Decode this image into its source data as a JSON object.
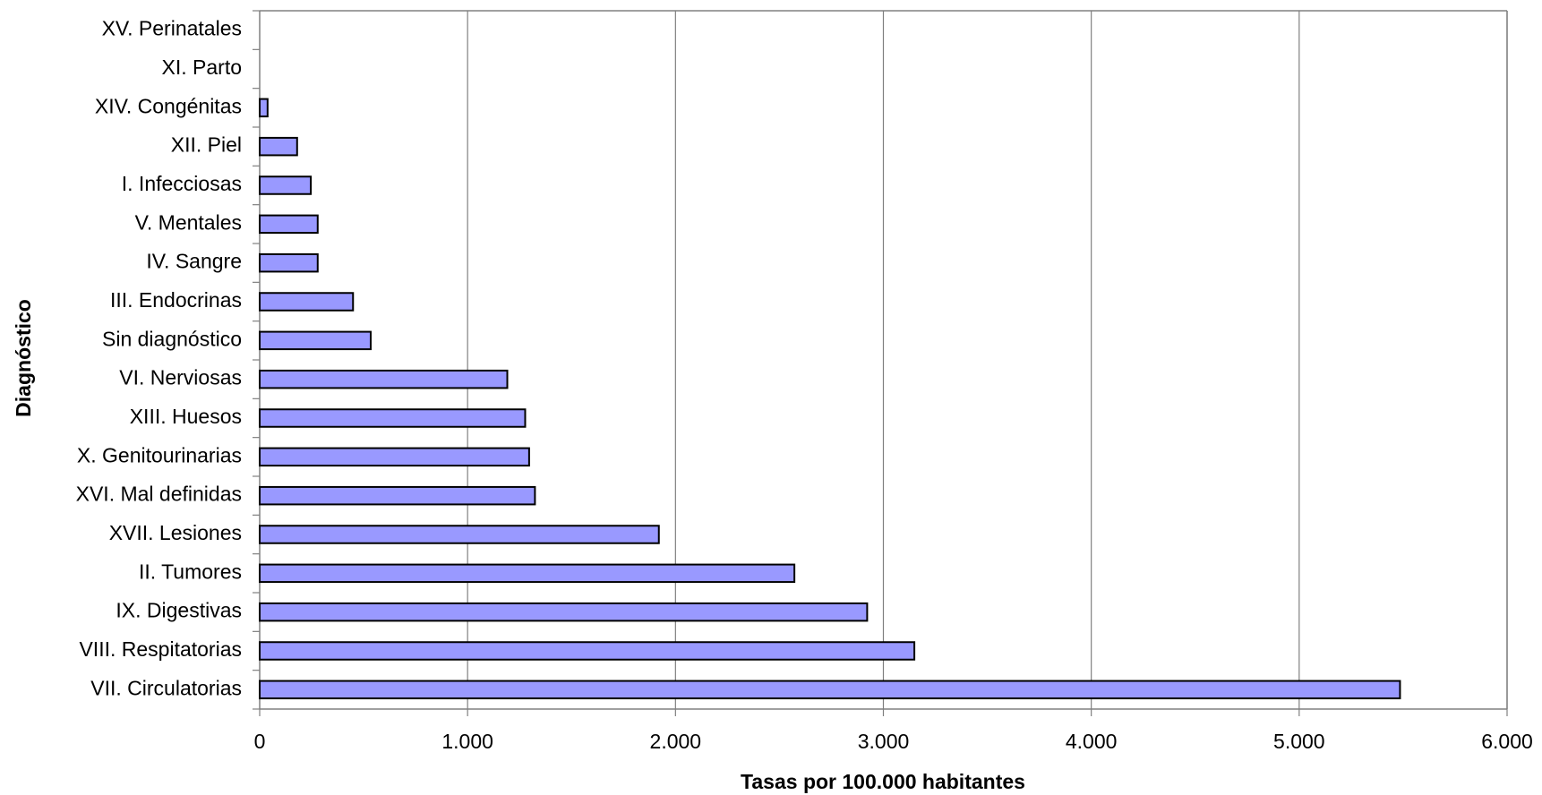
{
  "chart_data": {
    "type": "bar",
    "orientation": "horizontal",
    "x_label": "Tasas por 100.000 habitantes",
    "y_label": "Diagnóstico",
    "categories": [
      "XV. Perinatales",
      "XI. Parto",
      "XIV. Congénitas",
      "XII. Piel",
      "I. Infecciosas",
      "V. Mentales",
      "IV. Sangre",
      "III. Endocrinas",
      "Sin diagnóstico",
      "VI. Nerviosas",
      "XIII. Huesos",
      "X. Genitourinarias",
      "XVI. Mal definidas",
      "XVII. Lesiones",
      "II. Tumores",
      "IX. Digestivas",
      "VIII. Respitatorias",
      "VII. Circulatorias"
    ],
    "values": [
      0,
      0,
      38,
      180,
      246,
      279,
      279,
      449,
      534,
      1191,
      1277,
      1296,
      1324,
      1920,
      2572,
      2922,
      3149,
      5485
    ],
    "color": "#9999ff",
    "xlim": [
      0,
      6000
    ],
    "xticks": [
      0,
      {
        "value": 1000,
        "label": "1.000"
      },
      {
        "value": 2000,
        "label": "2.000"
      },
      {
        "value": 3000,
        "label": "3.000"
      },
      {
        "value": 4000,
        "label": "4.000"
      },
      {
        "value": 5000,
        "label": "5.000"
      },
      {
        "value": 6000,
        "label": "6.000"
      }
    ],
    "grid": true
  }
}
